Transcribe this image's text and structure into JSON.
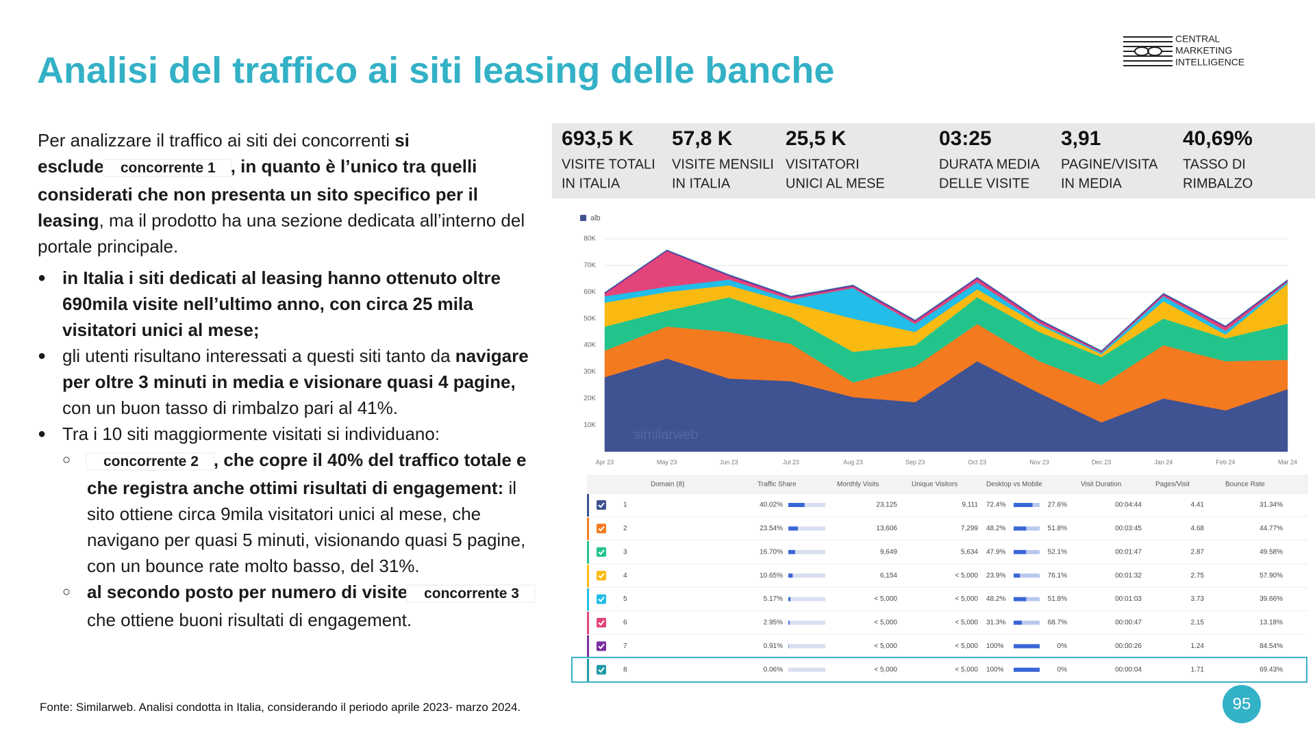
{
  "header": {
    "title": "Analisi del traffico ai siti leasing delle banche",
    "logo": [
      "CENTRAL",
      "MARKETING",
      "INTELLIGENCE"
    ]
  },
  "body": {
    "intro": [
      {
        "text": "Per analizzare il traffico ai siti dei concorrenti ",
        "style": "normal"
      },
      {
        "text": "si esclude",
        "style": "bold"
      },
      {
        "text": "concorrente 1",
        "style": "tag"
      },
      {
        "text": ", in quanto è l’unico tra quelli considerati che non presenta un sito specifico per il leasing",
        "style": "bold"
      },
      {
        "text": ", ma il prodotto ha una sezione dedicata all’interno del portale principale.",
        "style": "normal"
      }
    ],
    "bullets": [
      {
        "runs": [
          {
            "text": "in Italia i siti dedicati al leasing hanno ottenuto oltre 690mila visite nell’ultimo anno, con circa 25 mila visitatori unici al mese;",
            "style": "bold"
          }
        ]
      },
      {
        "runs": [
          {
            "text": "gli utenti risultano interessati a questi siti tanto da ",
            "style": "normal"
          },
          {
            "text": "navigare per oltre 3 minuti in media e visionare quasi 4 pagine,",
            "style": "bold"
          },
          {
            "text": " con un buon tasso di rimbalzo pari al 41%.",
            "style": "normal"
          }
        ]
      },
      {
        "runs": [
          {
            "text": "Tra i 10 siti maggiormente visitati si individuano:",
            "style": "normal"
          }
        ],
        "sub": [
          {
            "runs": [
              {
                "text": "concorrente 2",
                "style": "tag"
              },
              {
                "text": ", che copre il 40% del traffico totale e che registra anche ottimi risultati di engagement:",
                "style": "bold"
              },
              {
                "text": " il sito ottiene circa 9mila visitatori unici al mese, che navigano per quasi 5 minuti, visionando quasi 5 pagine, con un bounce rate molto basso, del 31%.",
                "style": "normal"
              }
            ]
          },
          {
            "runs": [
              {
                "text": "al secondo posto per numero di visite",
                "style": "bold"
              },
              {
                "text": "concorrente 3",
                "style": "tag"
              },
              {
                "text": " che ottiene buoni risultati di engagement.",
                "style": "normal"
              }
            ]
          }
        ]
      }
    ]
  },
  "kpis": [
    {
      "value": "693,5 K",
      "label": [
        "VISITE TOTALI",
        "IN ITALIA"
      ]
    },
    {
      "value": "57,8 K",
      "label": [
        "VISITE MENSILI",
        "IN ITALIA"
      ]
    },
    {
      "value": "25,5 K",
      "label": [
        "VISITATORI",
        "UNICI AL MESE"
      ]
    },
    {
      "value": "03:25",
      "label": [
        "DURATA MEDIA",
        "DELLE VISITE"
      ]
    },
    {
      "value": "3,91",
      "label": [
        "PAGINE/VISITA",
        "IN MEDIA"
      ]
    },
    {
      "value": "40,69%",
      "label": [
        "TASSO DI",
        "RIMBALZO"
      ]
    }
  ],
  "chart_data": {
    "type": "area",
    "stacked": true,
    "legend_label": "alb",
    "watermark": "similarweb",
    "grid": true,
    "x": [
      "Apr 23",
      "May 23",
      "Jun 23",
      "Jul 23",
      "Aug 23",
      "Sep 23",
      "Oct 23",
      "Nov 23",
      "Dec 23",
      "Jan 24",
      "Feb 24",
      "Mar 24"
    ],
    "series": [
      {
        "color": "#3f5291",
        "values": [
          28000,
          35000,
          27500,
          26500,
          20500,
          18600,
          34000,
          22000,
          11000,
          20000,
          15500,
          23500
        ]
      },
      {
        "color": "#f47a20",
        "values": [
          10000,
          12000,
          17500,
          14000,
          5500,
          13400,
          14000,
          12000,
          14000,
          20000,
          18500,
          11000
        ]
      },
      {
        "color": "#22c48c",
        "values": [
          9000,
          6000,
          13000,
          10000,
          11500,
          8000,
          10000,
          11000,
          10600,
          10000,
          8600,
          13600
        ]
      },
      {
        "color": "#fbba12",
        "values": [
          9000,
          7000,
          4500,
          5500,
          12500,
          5000,
          3000,
          2600,
          1000,
          6500,
          1400,
          15000
        ]
      },
      {
        "color": "#22bde8",
        "values": [
          2400,
          2000,
          2200,
          1200,
          11500,
          3000,
          2700,
          700,
          600,
          1900,
          1400,
          700
        ]
      },
      {
        "color": "#e3457a",
        "values": [
          900,
          13400,
          1300,
          700,
          600,
          900,
          1300,
          900,
          300,
          600,
          1300,
          300
        ]
      },
      {
        "color": "#7b2fa0",
        "values": [
          500,
          400,
          500,
          500,
          500,
          500,
          500,
          500,
          400,
          500,
          500,
          500
        ]
      },
      {
        "color": "#1e9aa6",
        "values": [
          100,
          100,
          100,
          100,
          100,
          100,
          100,
          100,
          100,
          100,
          100,
          100
        ]
      }
    ],
    "ylim": [
      0,
      80000
    ],
    "yticks": [
      {
        "value": 10000,
        "label": "10K"
      },
      {
        "value": 20000,
        "label": "20K"
      },
      {
        "value": 30000,
        "label": "30K"
      },
      {
        "value": 40000,
        "label": "40K"
      },
      {
        "value": 50000,
        "label": "50K"
      },
      {
        "value": 60000,
        "label": "60K"
      },
      {
        "value": 70000,
        "label": "70K"
      },
      {
        "value": 80000,
        "label": "80K"
      }
    ]
  },
  "table": {
    "headers": [
      "Domain (8)",
      "Traffic Share",
      "Monthly Visits",
      "Unique Visitors",
      "Desktop vs Mobile",
      "Visit Duration",
      "Pages/Visit",
      "Bounce Rate"
    ],
    "rows": [
      [
        "1",
        "40.02%",
        "23,125",
        "9,111",
        "72.4%",
        "27.6%",
        "00:04:44",
        "4.41",
        "31.34%"
      ],
      [
        "2",
        "23.54%",
        "13,606",
        "7,299",
        "48.2%",
        "51.8%",
        "00:03:45",
        "4.68",
        "44.77%"
      ],
      [
        "3",
        "16.70%",
        "9,649",
        "5,634",
        "47.9%",
        "52.1%",
        "00:01:47",
        "2.87",
        "49.58%"
      ],
      [
        "4",
        "10.65%",
        "6,154",
        "< 5,000",
        "23.9%",
        "76.1%",
        "00:01:32",
        "2.75",
        "57.90%"
      ],
      [
        "5",
        "5.17%",
        "< 5,000",
        "< 5,000",
        "48.2%",
        "51.8%",
        "00:01:03",
        "3.73",
        "39.66%"
      ],
      [
        "6",
        "2.95%",
        "< 5,000",
        "< 5,000",
        "31.3%",
        "68.7%",
        "00:00:47",
        "2.15",
        "13.18%"
      ],
      [
        "7",
        "0.91%",
        "< 5,000",
        "< 5,000",
        "100%",
        "0%",
        "00:00:26",
        "1.24",
        "84.54%"
      ],
      [
        "8",
        "0.06%",
        "< 5,000",
        "< 5,000",
        "100%",
        "0%",
        "00:00:04",
        "1.71",
        "69.43%"
      ]
    ]
  },
  "footer": {
    "source": "Fonte: Similarweb. Analisi condotta in Italia, considerando il periodo aprile 2023- marzo 2024.",
    "page": "95"
  }
}
